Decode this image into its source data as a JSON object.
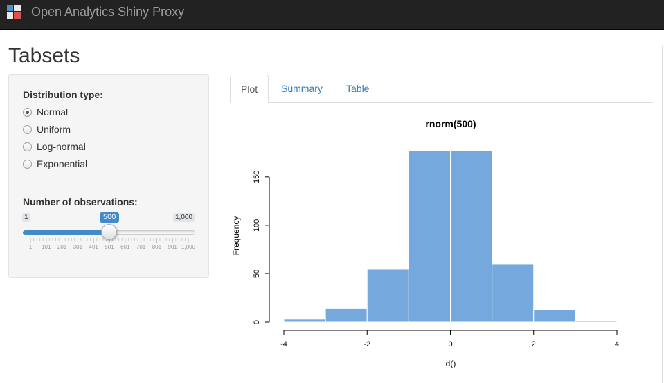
{
  "app": {
    "brand": "Open Analytics Shiny Proxy"
  },
  "page": {
    "title": "Tabsets"
  },
  "sidebar": {
    "dist_label": "Distribution type:",
    "dist_options": [
      {
        "label": "Normal",
        "checked": true
      },
      {
        "label": "Uniform",
        "checked": false
      },
      {
        "label": "Log-normal",
        "checked": false
      },
      {
        "label": "Exponential",
        "checked": false
      }
    ],
    "obs_label": "Number of observations:",
    "slider": {
      "min_label": "1",
      "max_label": "1,000",
      "value_label": "500",
      "value": 500,
      "min": 1,
      "max": 1000,
      "grid_labels": [
        "1",
        "101",
        "201",
        "301",
        "401",
        "501",
        "601",
        "701",
        "801",
        "901",
        "1,000"
      ]
    }
  },
  "tabs": [
    {
      "label": "Plot",
      "active": true
    },
    {
      "label": "Summary",
      "active": false
    },
    {
      "label": "Table",
      "active": false
    }
  ],
  "colors": {
    "accent": "#428bca",
    "link": "#337ab7",
    "bar_fill": "#75a8dc",
    "navbar": "#222222"
  },
  "chart_data": {
    "type": "bar",
    "title": "rnorm(500)",
    "xlabel": "d()",
    "ylabel": "Frequency",
    "bin_edges": [
      -4,
      -3,
      -2,
      -1,
      0,
      1,
      2,
      3,
      4
    ],
    "values": [
      3,
      14,
      55,
      177,
      177,
      60,
      13,
      1
    ],
    "xlim": [
      -4,
      4
    ],
    "ylim": [
      0,
      177
    ],
    "x_ticks": [
      "-4",
      "-2",
      "0",
      "2",
      "4"
    ],
    "y_ticks": [
      "0",
      "50",
      "100",
      "150"
    ],
    "grid": false,
    "legend": "none"
  }
}
